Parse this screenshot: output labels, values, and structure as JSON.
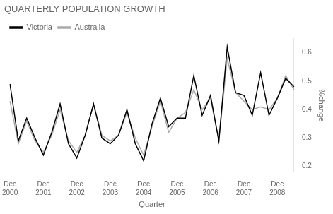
{
  "chart_data": {
    "type": "line",
    "title": "QUARTERLY POPULATION GROWTH",
    "x_label": "Quarter",
    "y_label": "%change",
    "categories": [
      "Dec\n2000",
      null,
      null,
      null,
      "Dec\n2001",
      null,
      null,
      null,
      "Dec\n2002",
      null,
      null,
      null,
      "Dec\n2003",
      null,
      null,
      null,
      "Dec\n2004",
      null,
      null,
      null,
      "Dec\n2005",
      null,
      null,
      null,
      "Dec\n2006",
      null,
      null,
      null,
      "Dec\n2007",
      null,
      null,
      null,
      "Dec\n2008",
      null,
      null
    ],
    "series": [
      {
        "name": "Victoria",
        "color": "#000000",
        "values": [
          0.49,
          0.29,
          0.37,
          0.3,
          0.24,
          0.32,
          0.42,
          0.28,
          0.23,
          0.31,
          0.42,
          0.3,
          0.28,
          0.31,
          0.4,
          0.28,
          0.22,
          0.35,
          0.44,
          0.34,
          0.37,
          0.37,
          0.52,
          0.38,
          0.45,
          0.29,
          0.62,
          0.46,
          0.45,
          0.38,
          0.53,
          0.38,
          0.44,
          0.51,
          0.48
        ]
      },
      {
        "name": "Australia",
        "color": "#aaaaaa",
        "values": [
          0.43,
          0.28,
          0.36,
          0.29,
          0.25,
          0.31,
          0.4,
          0.29,
          0.25,
          0.31,
          0.42,
          0.31,
          0.29,
          0.31,
          0.39,
          0.3,
          0.24,
          0.34,
          0.43,
          0.32,
          0.37,
          0.39,
          0.47,
          0.4,
          0.44,
          0.29,
          0.58,
          0.46,
          0.43,
          0.4,
          0.41,
          0.4,
          0.44,
          0.52,
          0.47
        ]
      }
    ],
    "ylim": [
      0.18,
      0.65
    ],
    "yticks": [
      0.2,
      0.3,
      0.4,
      0.5,
      0.6
    ],
    "grid": false,
    "legend": "upper left"
  }
}
